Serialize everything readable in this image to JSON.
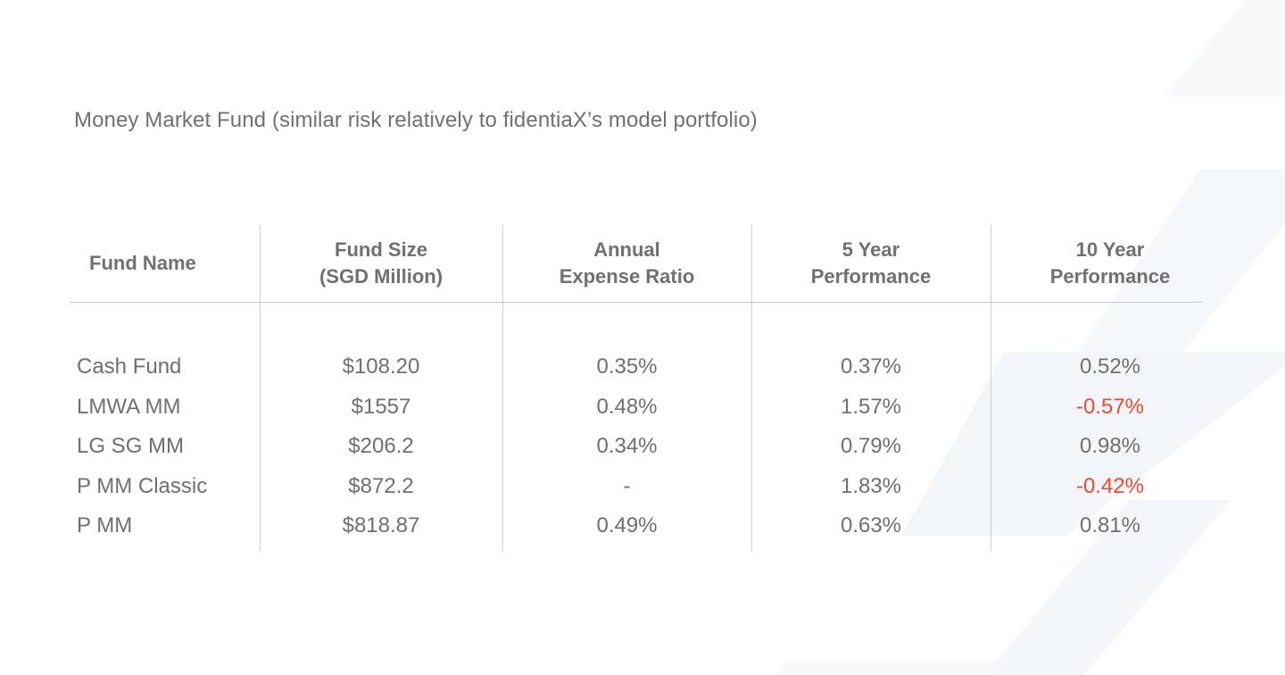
{
  "heading": "Money Market Fund (similar risk relatively to fidentiaX’s model portfolio)",
  "colors": {
    "text": "#6f6f6f",
    "negative": "#f0492c",
    "divider": "#cfcfcf",
    "watermark": "#f4f7f9"
  },
  "table": {
    "headers": [
      [
        "Fund Name"
      ],
      [
        "Fund Size",
        "(SGD Million)"
      ],
      [
        "Annual",
        "Expense Ratio"
      ],
      [
        "5 Year",
        "Performance"
      ],
      [
        "10 Year",
        "Performance"
      ]
    ],
    "rows": [
      [
        "Cash Fund",
        "$108.20",
        "0.35%",
        "0.37%",
        "0.52%"
      ],
      [
        "LMWA MM",
        "$1557",
        "0.48%",
        "1.57%",
        "-0.57%"
      ],
      [
        "LG SG MM",
        "$206.2",
        "0.34%",
        "0.79%",
        "0.98%"
      ],
      [
        "P MM Classic",
        "$872.2",
        "-",
        "1.83%",
        "-0.42%"
      ],
      [
        "P MM",
        "$818.87",
        "0.49%",
        "0.63%",
        "0.81%"
      ]
    ]
  }
}
